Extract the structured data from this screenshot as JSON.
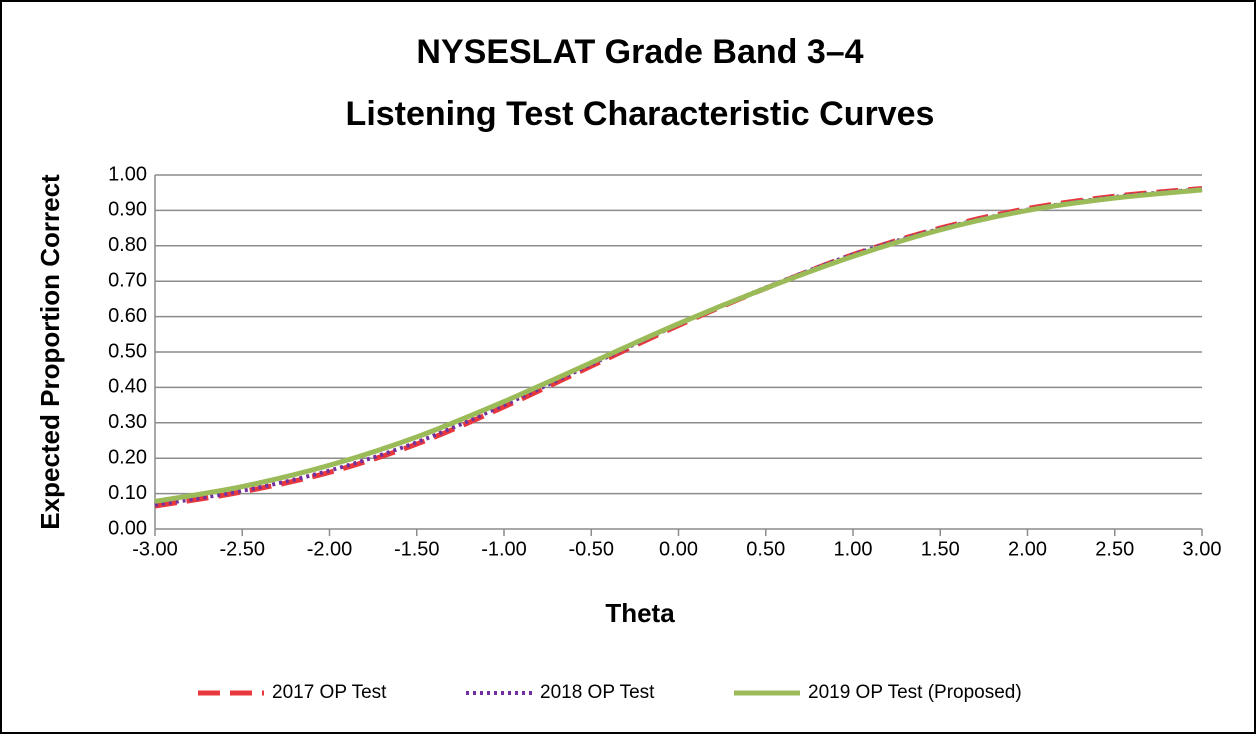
{
  "chart_data": {
    "type": "line",
    "title": [
      "NYSESLAT Grade Band 3–4",
      "Listening Test Characteristic Curves"
    ],
    "x_label": "Theta",
    "y_label": "Expected Proportion Correct",
    "x": [
      -3,
      -2.5,
      -2,
      -1.5,
      -1,
      -0.5,
      0,
      0.5,
      1,
      1.5,
      2,
      2.5,
      3
    ],
    "series": [
      {
        "name": "2017 OP Test",
        "color": "#e8383d",
        "style": "dashed",
        "values": [
          0.065,
          0.105,
          0.16,
          0.24,
          0.345,
          0.46,
          0.575,
          0.68,
          0.775,
          0.85,
          0.905,
          0.94,
          0.962
        ]
      },
      {
        "name": "2018 OP Test",
        "color": "#7030a0",
        "style": "dotted",
        "values": [
          0.068,
          0.108,
          0.165,
          0.245,
          0.35,
          0.465,
          0.578,
          0.682,
          0.775,
          0.848,
          0.902,
          0.938,
          0.96
        ]
      },
      {
        "name": "2019 OP Test (Proposed)",
        "color": "#9bbb59",
        "style": "solid",
        "values": [
          0.078,
          0.12,
          0.18,
          0.26,
          0.36,
          0.47,
          0.58,
          0.68,
          0.77,
          0.845,
          0.9,
          0.935,
          0.958
        ]
      }
    ],
    "xlim": [
      -3,
      3
    ],
    "xticks": [
      {
        "value": -3,
        "label": "-3.00"
      },
      {
        "value": -2.5,
        "label": "-2.50"
      },
      {
        "value": -2,
        "label": "-2.00"
      },
      {
        "value": -1.5,
        "label": "-1.50"
      },
      {
        "value": -1,
        "label": "-1.00"
      },
      {
        "value": -0.5,
        "label": "-0.50"
      },
      {
        "value": 0,
        "label": "0.00"
      },
      {
        "value": 0.5,
        "label": "0.50"
      },
      {
        "value": 1,
        "label": "1.00"
      },
      {
        "value": 1.5,
        "label": "1.50"
      },
      {
        "value": 2,
        "label": "2.00"
      },
      {
        "value": 2.5,
        "label": "2.50"
      },
      {
        "value": 3,
        "label": "3.00"
      }
    ],
    "ylim": [
      0,
      1
    ],
    "yticks": [
      {
        "value": 0,
        "label": "0.00"
      },
      {
        "value": 0.1,
        "label": "0.10"
      },
      {
        "value": 0.2,
        "label": "0.20"
      },
      {
        "value": 0.3,
        "label": "0.30"
      },
      {
        "value": 0.4,
        "label": "0.40"
      },
      {
        "value": 0.5,
        "label": "0.50"
      },
      {
        "value": 0.6,
        "label": "0.60"
      },
      {
        "value": 0.7,
        "label": "0.70"
      },
      {
        "value": 0.8,
        "label": "0.80"
      },
      {
        "value": 0.9,
        "label": "0.90"
      },
      {
        "value": 1,
        "label": "1.00"
      }
    ],
    "grid": true,
    "legend": "bottom"
  }
}
